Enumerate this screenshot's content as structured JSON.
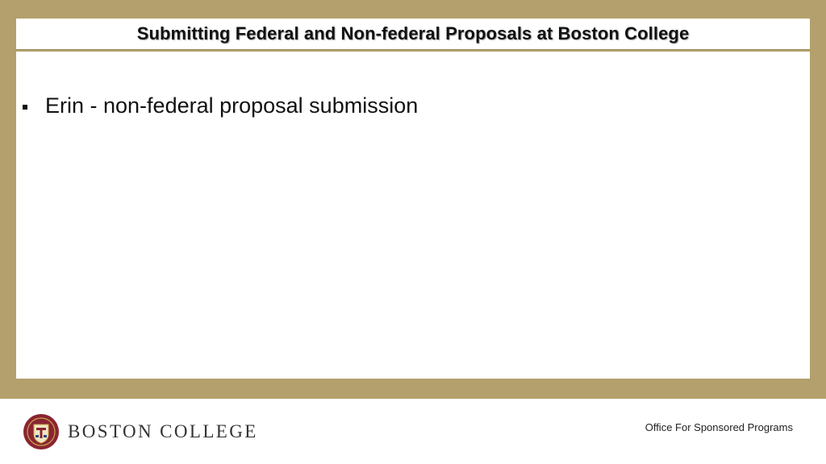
{
  "slide": {
    "title": "Submitting Federal and Non-federal Proposals at Boston College",
    "bullets": [
      "Erin - non-federal proposal submission"
    ]
  },
  "footer": {
    "logo_text": "BOSTON COLLEGE",
    "office": "Office For Sponsored Programs"
  },
  "colors": {
    "frame": "#b3a06c",
    "seal_maroon": "#8a2432",
    "seal_gold": "#c9a74a"
  }
}
